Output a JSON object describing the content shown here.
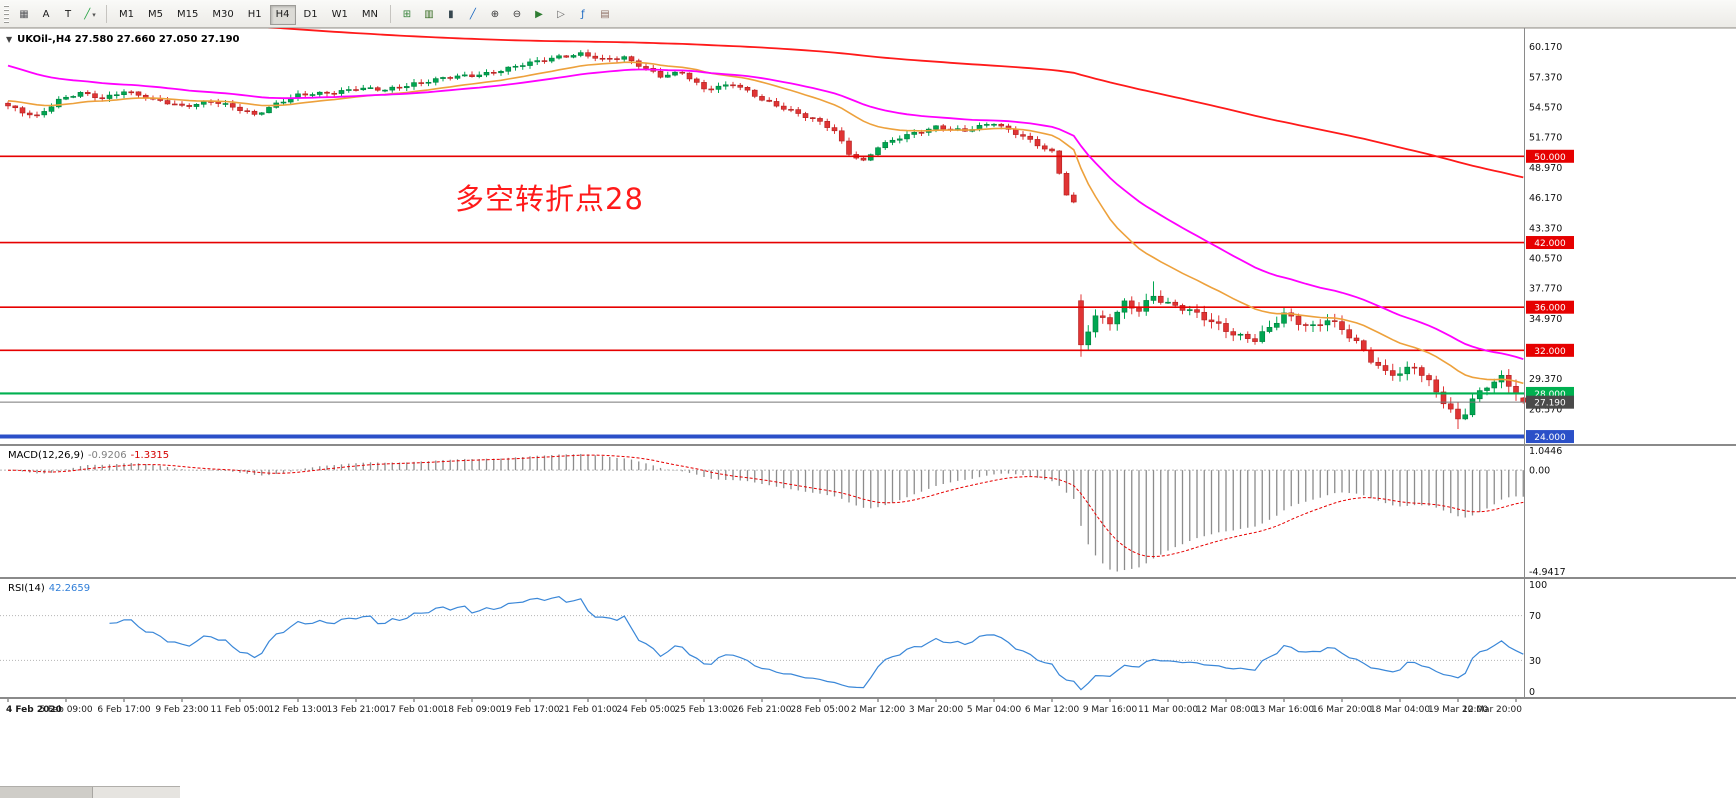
{
  "toolbar": {
    "left_tools": [
      {
        "name": "symbols-palette",
        "glyph": "▦",
        "color": "#55565a"
      },
      {
        "name": "text-label-tool",
        "glyph": "A",
        "color": "#1a1a1a"
      },
      {
        "name": "text-tool",
        "glyph": "T",
        "color": "#1a1a1a"
      },
      {
        "name": "draw-trendline-tool",
        "glyph": "╱",
        "color": "#1d9f3c",
        "dropdown": true
      }
    ],
    "timeframes": [
      "M1",
      "M5",
      "M15",
      "M30",
      "H1",
      "H4",
      "D1",
      "W1",
      "MN"
    ],
    "active_timeframe": "H4",
    "right_tools": [
      {
        "name": "new-order",
        "glyph": "⊞",
        "color": "#2e7d32"
      },
      {
        "name": "chart-bars",
        "glyph": "▥",
        "color": "#33691e"
      },
      {
        "name": "chart-candles",
        "glyph": "▮",
        "color": "#37474f"
      },
      {
        "name": "chart-line",
        "glyph": "╱",
        "color": "#1565c0"
      },
      {
        "name": "zoom-in",
        "glyph": "⊕",
        "color": "#333333"
      },
      {
        "name": "zoom-out",
        "glyph": "⊖",
        "color": "#333333"
      },
      {
        "name": "auto-scroll",
        "glyph": "▶",
        "color": "#2e7d32"
      },
      {
        "name": "chart-shift",
        "glyph": "▷",
        "color": "#666666"
      },
      {
        "name": "indicators",
        "glyph": "ƒ",
        "color": "#1565c0"
      },
      {
        "name": "templates",
        "glyph": "▤",
        "color": "#8d6e63"
      }
    ]
  },
  "chart": {
    "title": "UKOil-,H4 27.580 27.660 27.050 27.190",
    "symbol": "UKOil-",
    "period": "H4",
    "annotation": {
      "text": "多空转折点28",
      "color": "#ff1a1a"
    },
    "price_axis_labels": [
      "60.170",
      "57.370",
      "54.570",
      "51.770",
      "48.970",
      "46.170",
      "43.370",
      "40.570",
      "37.770",
      "34.970",
      "29.370",
      "26.570"
    ],
    "hlines": [
      {
        "value": 50.0,
        "label": "50.000",
        "color": "#e60000",
        "width": 1.6
      },
      {
        "value": 42.0,
        "label": "42.000",
        "color": "#e60000",
        "width": 1.6
      },
      {
        "value": 36.0,
        "label": "36.000",
        "color": "#e60000",
        "width": 1.6
      },
      {
        "value": 32.0,
        "label": "32.000",
        "color": "#e60000",
        "width": 1.6
      },
      {
        "value": 28.0,
        "label": "28.000",
        "color": "#00b050",
        "width": 2.2
      },
      {
        "value": 24.0,
        "label": "24.000",
        "color": "#2b50c8",
        "width": 4
      }
    ],
    "current_price": {
      "value": 27.19,
      "label": "27.190",
      "tag_color": "#4a4a4a",
      "line_color": "#777777"
    },
    "colors": {
      "up": "#00a651",
      "up_border": "#00803e",
      "down": "#e03434",
      "down_border": "#b02020",
      "ma_fast": "#eda13c",
      "ma_mid": "#ff00ff",
      "ma_slow": "#ff1a1a"
    }
  },
  "chart_data": {
    "type": "candlestick",
    "symbol": "UKOil-",
    "timeframe": "H4",
    "candle_count": 210,
    "last_candle_ohlc": {
      "open": 27.58,
      "high": 27.66,
      "low": 27.05,
      "close": 27.19
    },
    "close_anchors": [
      [
        0,
        54.6
      ],
      [
        2,
        54.1
      ],
      [
        4,
        53.8
      ],
      [
        7,
        55.2
      ],
      [
        10,
        55.8
      ],
      [
        13,
        55.4
      ],
      [
        16,
        56.1
      ],
      [
        20,
        55.2
      ],
      [
        24,
        54.7
      ],
      [
        28,
        55.1
      ],
      [
        31,
        54.5
      ],
      [
        34,
        53.9
      ],
      [
        37,
        54.9
      ],
      [
        40,
        55.6
      ],
      [
        44,
        55.9
      ],
      [
        48,
        56.3
      ],
      [
        52,
        56.1
      ],
      [
        56,
        56.8
      ],
      [
        60,
        57.2
      ],
      [
        64,
        57.5
      ],
      [
        68,
        58.0
      ],
      [
        72,
        58.6
      ],
      [
        76,
        59.3
      ],
      [
        79,
        59.5
      ],
      [
        82,
        58.9
      ],
      [
        85,
        59.2
      ],
      [
        88,
        58.2
      ],
      [
        90,
        57.4
      ],
      [
        93,
        57.7
      ],
      [
        96,
        56.3
      ],
      [
        100,
        56.7
      ],
      [
        104,
        55.2
      ],
      [
        108,
        54.3
      ],
      [
        112,
        53.1
      ],
      [
        114,
        52.3
      ],
      [
        116,
        50.3
      ],
      [
        118,
        49.6
      ],
      [
        120,
        50.9
      ],
      [
        124,
        51.9
      ],
      [
        128,
        52.8
      ],
      [
        132,
        52.3
      ],
      [
        136,
        53.1
      ],
      [
        140,
        51.9
      ],
      [
        142,
        51.0
      ],
      [
        144,
        50.3
      ],
      [
        146,
        46.5
      ],
      [
        147,
        45.7
      ],
      [
        148,
        32.6
      ],
      [
        149,
        34.1
      ],
      [
        150,
        35.2
      ],
      [
        152,
        34.6
      ],
      [
        154,
        36.2
      ],
      [
        156,
        35.7
      ],
      [
        158,
        37.2
      ],
      [
        160,
        36.4
      ],
      [
        162,
        35.9
      ],
      [
        164,
        35.2
      ],
      [
        166,
        34.6
      ],
      [
        168,
        34.0
      ],
      [
        170,
        33.4
      ],
      [
        172,
        33.0
      ],
      [
        174,
        33.9
      ],
      [
        176,
        35.3
      ],
      [
        178,
        34.7
      ],
      [
        180,
        34.3
      ],
      [
        182,
        34.9
      ],
      [
        184,
        33.8
      ],
      [
        186,
        32.6
      ],
      [
        188,
        31.2
      ],
      [
        190,
        30.1
      ],
      [
        192,
        29.9
      ],
      [
        194,
        30.4
      ],
      [
        196,
        28.9
      ],
      [
        198,
        27.3
      ],
      [
        200,
        25.7
      ],
      [
        201,
        26.4
      ],
      [
        202,
        27.5
      ],
      [
        204,
        28.6
      ],
      [
        206,
        29.3
      ],
      [
        207,
        28.7
      ],
      [
        208,
        28.1
      ],
      [
        209,
        27.19
      ]
    ],
    "gap_index": 148,
    "overrides": {
      "148": {
        "open": 36.6,
        "low": 31.4
      },
      "158": {
        "high": 38.4
      },
      "200": {
        "low": 24.7
      },
      "209": {
        "open": 27.58,
        "high": 27.66,
        "low": 27.05,
        "close": 27.19
      }
    },
    "moving_averages": [
      {
        "name": "ma-fast",
        "period": 20,
        "seed": 55.2,
        "color": "#eda13c",
        "width": 1.6
      },
      {
        "name": "ma-mid",
        "period": 40,
        "seed": 58.6,
        "color": "#ff00ff",
        "width": 1.8
      },
      {
        "name": "ma-slow",
        "period": 260,
        "seed": 64.3,
        "color": "#ff1a1a",
        "width": 1.8
      }
    ],
    "macd": {
      "fast": 12,
      "slow": 26,
      "signal": 9,
      "min": -4.9417,
      "max": 1.0446
    },
    "rsi": {
      "period": 14,
      "levels": [
        70,
        30
      ]
    }
  },
  "macd_panel": {
    "label": "MACD(12,26,9)",
    "value_main": "-0.9206",
    "value_signal": "-1.3315",
    "axis_labels": [
      "1.0446",
      "0.00",
      "-4.9417"
    ],
    "histogram_color": "#8c8c8c",
    "signal_color": "#e60000"
  },
  "rsi_panel": {
    "label": "RSI(14)",
    "value": "42.2659",
    "axis_labels": [
      "100",
      "70",
      "30",
      "0"
    ],
    "line_color": "#3a87d8"
  },
  "time_axis": {
    "labels": [
      {
        "i": 0,
        "t": "4 Feb 2020"
      },
      {
        "i": 8,
        "t": "5 Feb 09:00"
      },
      {
        "i": 16,
        "t": "6 Feb 17:00"
      },
      {
        "i": 24,
        "t": "9 Feb 23:00"
      },
      {
        "i": 32,
        "t": "11 Feb 05:00"
      },
      {
        "i": 40,
        "t": "12 Feb 13:00"
      },
      {
        "i": 48,
        "t": "13 Feb 21:00"
      },
      {
        "i": 56,
        "t": "17 Feb 01:00"
      },
      {
        "i": 64,
        "t": "18 Feb 09:00"
      },
      {
        "i": 72,
        "t": "19 Feb 17:00"
      },
      {
        "i": 80,
        "t": "21 Feb 01:00"
      },
      {
        "i": 88,
        "t": "24 Feb 05:00"
      },
      {
        "i": 96,
        "t": "25 Feb 13:00"
      },
      {
        "i": 104,
        "t": "26 Feb 21:00"
      },
      {
        "i": 112,
        "t": "28 Feb 05:00"
      },
      {
        "i": 120,
        "t": "2 Mar 12:00"
      },
      {
        "i": 128,
        "t": "3 Mar 20:00"
      },
      {
        "i": 136,
        "t": "5 Mar 04:00"
      },
      {
        "i": 144,
        "t": "6 Mar 12:00"
      },
      {
        "i": 152,
        "t": "9 Mar 16:00"
      },
      {
        "i": 160,
        "t": "11 Mar 00:00"
      },
      {
        "i": 168,
        "t": "12 Mar 08:00"
      },
      {
        "i": 176,
        "t": "13 Mar 16:00"
      },
      {
        "i": 184,
        "t": "16 Mar 20:00"
      },
      {
        "i": 192,
        "t": "18 Mar 04:00"
      },
      {
        "i": 200,
        "t": "19 Mar 12:00"
      },
      {
        "i": 208,
        "t": "20 Mar 20:00"
      }
    ]
  }
}
